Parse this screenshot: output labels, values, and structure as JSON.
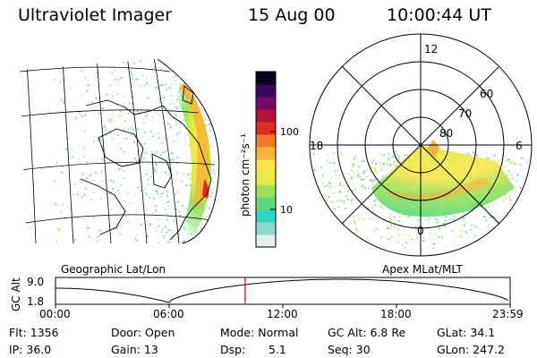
{
  "header": {
    "instrument": "Ultraviolet Imager",
    "date": "15 Aug 00",
    "time": "10:00:44 UT"
  },
  "colorbar": {
    "unit_label": "photon cm⁻²s⁻¹",
    "tick_labels": [
      "100",
      "10"
    ],
    "colors": [
      "#e8eef0",
      "#8fd8ce",
      "#2fd6c4",
      "#5fd87a",
      "#9be25a",
      "#e4ec42",
      "#fbe64a",
      "#f6b33c",
      "#f07a2a",
      "#de2c1e",
      "#b8123c",
      "#7a0a66",
      "#3a0660",
      "#0a0420"
    ]
  },
  "geo_panel": {
    "label": "Geographic Lat/Lon"
  },
  "polar_panel": {
    "label": "Apex MLat/MLT",
    "mlt_labels": {
      "top": "12",
      "left": "18",
      "right": "6",
      "bottom": "0"
    },
    "lat_labels": [
      "60",
      "70",
      "80"
    ]
  },
  "altitude_plot": {
    "ylabel": "GC Alt",
    "y_ticks": [
      "9.0",
      "1.8"
    ],
    "x_ticks": [
      "00:00",
      "06:00",
      "12:00",
      "18:00",
      "23:59"
    ],
    "current_marker_color": "#cc0000"
  },
  "info": {
    "flt": "Flt: 1356",
    "ip": "IP: 36.0",
    "door": "Door: Open",
    "gain": "Gain: 13",
    "mode": "Mode: Normal",
    "dsp_label": "Dsp:",
    "dsp_value": "5.1",
    "gc_alt": "GC Alt: 6.8 Re",
    "seq": "Seq: 30",
    "glat": "GLat:  34.1",
    "glon": "GLon: 247.2"
  }
}
